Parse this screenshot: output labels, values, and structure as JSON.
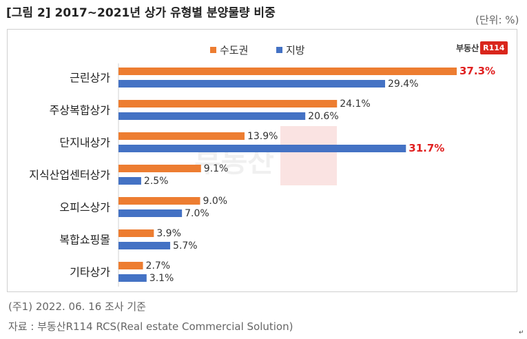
{
  "header": {
    "title": "[그림 2] 2017~2021년 상가 유형별 분양물량 비중",
    "unit": "(단위: %)"
  },
  "logo": {
    "text": "부동산",
    "badge": "R114"
  },
  "footer": {
    "note": "(주1) 2022. 06. 16 조사 기준",
    "source": "자료 : 부동산R114 RCS(Real estate Commercial Solution)"
  },
  "colors": {
    "capital": "#ed7d31",
    "local": "#4472c4",
    "highlight": "#e02020"
  },
  "chart_data": {
    "type": "bar",
    "orientation": "horizontal",
    "title": "2017~2021년 상가 유형별 분양물량 비중",
    "unit": "%",
    "categories": [
      "근린상가",
      "주상복합상가",
      "단지내상가",
      "지식산업센터상가",
      "오피스상가",
      "복합쇼핑몰",
      "기타상가"
    ],
    "series": [
      {
        "name": "수도권",
        "values": [
          37.3,
          24.1,
          13.9,
          9.1,
          9.0,
          3.9,
          2.7
        ]
      },
      {
        "name": "지방",
        "values": [
          29.4,
          20.6,
          31.7,
          2.5,
          7.0,
          5.7,
          3.1
        ]
      }
    ],
    "highlighted": [
      {
        "series": "수도권",
        "category": "근린상가"
      },
      {
        "series": "지방",
        "category": "단지내상가"
      }
    ],
    "legend_position": "top-center",
    "xlim": [
      0,
      37.3
    ]
  }
}
